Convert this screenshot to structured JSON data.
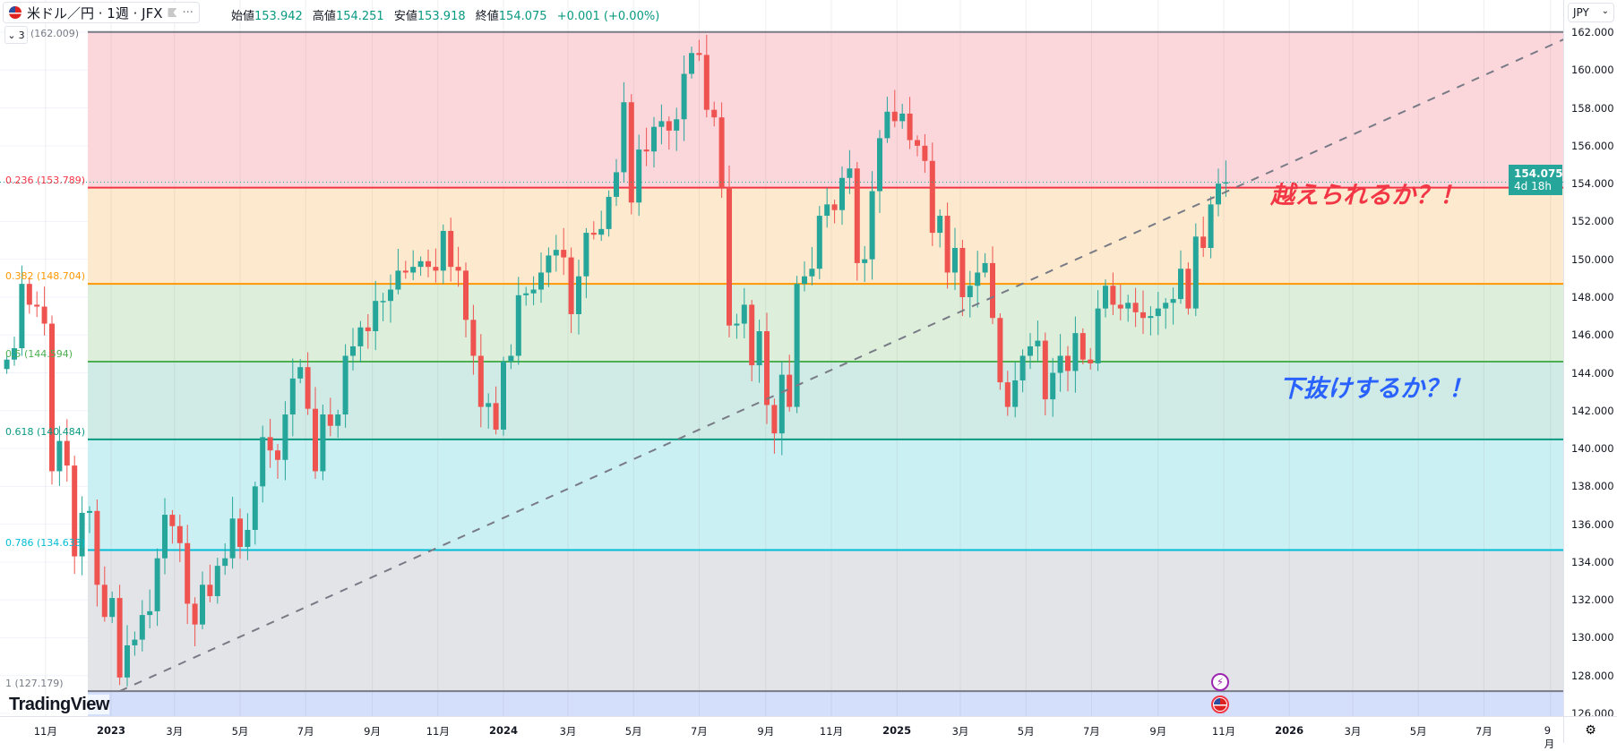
{
  "header": {
    "symbol": "米ドル／円 · 1週 · JFX",
    "more": "···",
    "ohlc": [
      {
        "k": "始値",
        "v": "153.942"
      },
      {
        "k": "高値",
        "v": "154.251"
      },
      {
        "k": "安値",
        "v": "153.918"
      },
      {
        "k": "終値",
        "v": "154.075"
      }
    ],
    "change": "+0.001 (+0.00%)",
    "collapse_count": "3"
  },
  "currency": "JPY",
  "current_price": {
    "price": "154.075",
    "countdown": "4d 18h",
    "value": 154.075
  },
  "fib": {
    "top_label": "(162.009)",
    "levels": [
      {
        "ratio": "0",
        "price": 162.009,
        "label": "(162.009)",
        "color": "#787b86",
        "fill": "#fbd7dc"
      },
      {
        "ratio": "0.236",
        "price": 153.789,
        "label": "0.236 (153.789)",
        "color": "#f23645",
        "fill": "#fde9cd"
      },
      {
        "ratio": "0.382",
        "price": 148.704,
        "label": "0.382 (148.704)",
        "color": "#ff9800",
        "fill": "#ddefdb"
      },
      {
        "ratio": "0.5",
        "price": 144.594,
        "label": "0.5 (144.594)",
        "color": "#4caf50",
        "fill": "#d0eae5"
      },
      {
        "ratio": "0.618",
        "price": 140.484,
        "label": "0.618 (140.484)",
        "color": "#089981",
        "fill": "#cbf0f3"
      },
      {
        "ratio": "0.786",
        "price": 134.633,
        "label": "0.786 (134.633)",
        "color": "#00bcd4",
        "fill": "#e3e4e7"
      },
      {
        "ratio": "1",
        "price": 127.179,
        "label": "1 (127.179)",
        "color": "#787b86",
        "fill": "#d3dffb"
      }
    ]
  },
  "annotations": {
    "up": "越えられるか？！",
    "down": "下抜けするか？！",
    "up_color": "#f23645",
    "down_color": "#2962ff"
  },
  "price_axis": [
    "162.000",
    "160.000",
    "158.000",
    "156.000",
    "154.000",
    "152.000",
    "150.000",
    "148.000",
    "146.000",
    "144.000",
    "142.000",
    "140.000",
    "138.000",
    "136.000",
    "134.000",
    "132.000",
    "130.000",
    "128.000",
    "126.000"
  ],
  "time_axis": [
    {
      "t": "11月",
      "d": "2022-11-01"
    },
    {
      "t": "2023",
      "d": "2023-01-01",
      "y": true
    },
    {
      "t": "3月",
      "d": "2023-03-01"
    },
    {
      "t": "5月",
      "d": "2023-05-01"
    },
    {
      "t": "7月",
      "d": "2023-07-01"
    },
    {
      "t": "9月",
      "d": "2023-09-01"
    },
    {
      "t": "11月",
      "d": "2023-11-01"
    },
    {
      "t": "2024",
      "d": "2024-01-01",
      "y": true
    },
    {
      "t": "3月",
      "d": "2024-03-01"
    },
    {
      "t": "5月",
      "d": "2024-05-01"
    },
    {
      "t": "7月",
      "d": "2024-07-01"
    },
    {
      "t": "9月",
      "d": "2024-09-01"
    },
    {
      "t": "11月",
      "d": "2024-11-01"
    },
    {
      "t": "2025",
      "d": "2025-01-01",
      "y": true
    },
    {
      "t": "3月",
      "d": "2025-03-01"
    },
    {
      "t": "5月",
      "d": "2025-05-01"
    },
    {
      "t": "7月",
      "d": "2025-07-01"
    },
    {
      "t": "9月",
      "d": "2025-09-01"
    },
    {
      "t": "11月",
      "d": "2025-11-01"
    },
    {
      "t": "2026",
      "d": "2026-01-01",
      "y": true
    },
    {
      "t": "3月",
      "d": "2026-03-01"
    },
    {
      "t": "5月",
      "d": "2026-05-01"
    },
    {
      "t": "7月",
      "d": "2026-07-01"
    },
    {
      "t": "9月",
      "d": "2026-09-01"
    }
  ],
  "logo": "TradingView",
  "colors": {
    "up": "#26a69a",
    "down": "#ef5350",
    "trendline": "#787b86"
  },
  "chart_data": {
    "type": "candlestick",
    "interval": "1W",
    "first_week": "2022-09-26",
    "ylim": [
      126,
      162
    ],
    "trendline": {
      "from": {
        "date": "2023-01-09",
        "price": 127.179
      },
      "to": {
        "date": "2026-09-28",
        "price": 162.0
      }
    },
    "first_open": 144.2,
    "closes": [
      144.7,
      145.3,
      148.7,
      147.6,
      147.5,
      146.6,
      138.8,
      140.4,
      139.1,
      134.3,
      136.6,
      136.7,
      132.8,
      131.1,
      132.1,
      127.9,
      129.6,
      129.9,
      131.2,
      131.4,
      134.2,
      136.5,
      135.9,
      135.0,
      131.8,
      130.7,
      132.8,
      132.2,
      133.8,
      134.2,
      136.3,
      134.8,
      135.7,
      138.0,
      140.6,
      139.9,
      139.4,
      141.8,
      143.7,
      144.3,
      142.1,
      138.8,
      141.8,
      141.2,
      141.8,
      144.9,
      145.4,
      146.4,
      146.2,
      147.8,
      147.8,
      148.4,
      149.4,
      149.3,
      149.6,
      149.9,
      149.6,
      149.4,
      151.5,
      149.6,
      149.4,
      146.8,
      144.9,
      142.2,
      142.4,
      141.0,
      144.6,
      144.9,
      148.1,
      148.2,
      148.4,
      149.3,
      150.2,
      150.5,
      150.1,
      147.1,
      149.1,
      151.4,
      151.3,
      151.6,
      153.3,
      154.6,
      158.3,
      153.0,
      155.8,
      155.7,
      157.0,
      157.3,
      156.8,
      157.4,
      159.8,
      160.9,
      160.8,
      157.9,
      157.5,
      153.8,
      146.5,
      146.6,
      147.6,
      144.4,
      146.2,
      142.3,
      140.8,
      143.9,
      142.2,
      148.7,
      149.1,
      149.5,
      152.3,
      152.9,
      152.6,
      154.3,
      154.8,
      149.8,
      150.0,
      153.6,
      156.4,
      157.8,
      157.3,
      157.7,
      156.3,
      156.0,
      155.2,
      151.4,
      152.3,
      149.3,
      150.6,
      148.0,
      148.6,
      149.3,
      149.8,
      146.9,
      143.5,
      142.2,
      143.6,
      144.9,
      145.4,
      145.7,
      142.6,
      144.0,
      144.9,
      144.1,
      146.1,
      144.7,
      144.5,
      147.4,
      148.6,
      147.6,
      147.4,
      147.7,
      147.2,
      146.9,
      147.0,
      147.4,
      147.7,
      147.9,
      149.5,
      147.4,
      151.2,
      150.6,
      152.9,
      154.0,
      154.075
    ]
  }
}
